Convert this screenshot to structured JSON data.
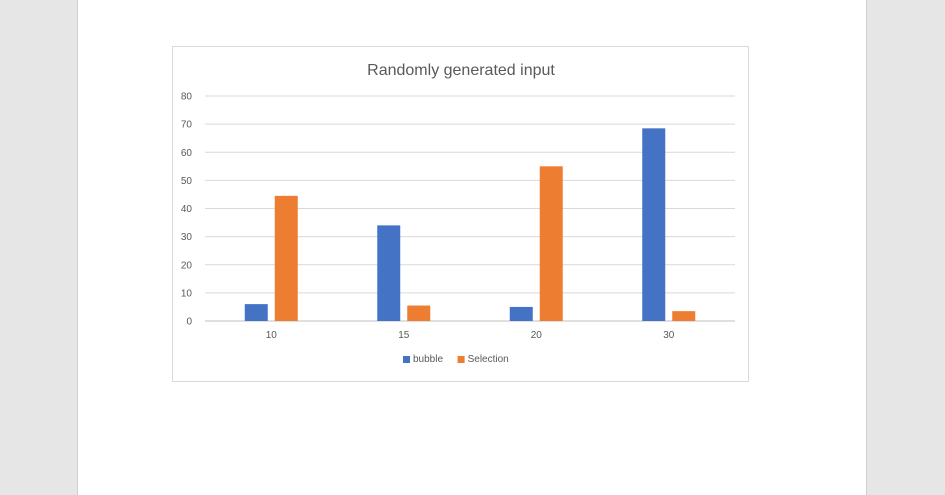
{
  "chart_data": {
    "type": "bar",
    "title": "Randomly generated input",
    "xlabel": "",
    "ylabel": "",
    "categories": [
      "10",
      "15",
      "20",
      "30"
    ],
    "series": [
      {
        "name": "bubble",
        "color": "#4472c4",
        "values": [
          6,
          34,
          5,
          68.5
        ]
      },
      {
        "name": "Selection",
        "color": "#ed7d31",
        "values": [
          44.5,
          5.5,
          55,
          3.5
        ]
      }
    ],
    "ylim": [
      0,
      80
    ],
    "yticks": [
      "0",
      "10",
      "20",
      "30",
      "40",
      "50",
      "60",
      "70",
      "80"
    ],
    "grid": true,
    "legend_position": "bottom"
  }
}
